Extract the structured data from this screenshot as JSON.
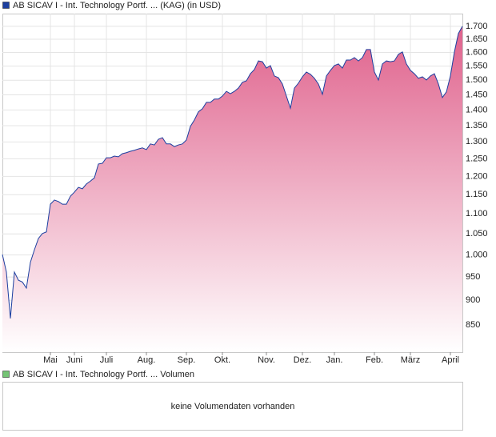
{
  "chart_data": [
    {
      "type": "area",
      "log_y": true,
      "grid": true,
      "area_color": "#e0648e",
      "categories": [
        null,
        null,
        null,
        null,
        null,
        null,
        null,
        null,
        null,
        null,
        null,
        null,
        "Mai",
        null,
        null,
        null,
        null,
        null,
        "Juni",
        null,
        null,
        null,
        null,
        null,
        null,
        null,
        "Juli",
        null,
        null,
        null,
        null,
        null,
        null,
        null,
        null,
        null,
        "Aug.",
        null,
        null,
        null,
        null,
        null,
        null,
        null,
        null,
        null,
        "Sep.",
        null,
        null,
        null,
        null,
        null,
        null,
        null,
        null,
        "Okt.",
        null,
        null,
        null,
        null,
        null,
        null,
        null,
        null,
        null,
        null,
        "Nov.",
        null,
        null,
        null,
        null,
        null,
        null,
        null,
        null,
        "Dez.",
        null,
        null,
        null,
        null,
        null,
        null,
        null,
        "Jan.",
        null,
        null,
        null,
        null,
        null,
        null,
        null,
        null,
        null,
        "Feb.",
        null,
        null,
        null,
        null,
        null,
        null,
        null,
        null,
        "März",
        null,
        null,
        null,
        null,
        null,
        null,
        null,
        null,
        null,
        "April",
        null,
        null,
        null
      ],
      "series": [
        {
          "name": "AB SICAV I - Int. Technology Portf. ... (KAG) (in USD)",
          "color": "#1c3fa0",
          "values": [
            1001,
            961,
            863,
            961,
            943,
            939,
            926,
            983,
            1012,
            1039,
            1051,
            1055,
            1125,
            1136,
            1132,
            1125,
            1125,
            1146,
            1157,
            1170,
            1166,
            1179,
            1187,
            1196,
            1235,
            1237,
            1253,
            1253,
            1258,
            1256,
            1265,
            1268,
            1272,
            1275,
            1279,
            1282,
            1277,
            1294,
            1291,
            1308,
            1313,
            1294,
            1294,
            1286,
            1291,
            1294,
            1306,
            1348,
            1368,
            1394,
            1404,
            1425,
            1425,
            1436,
            1436,
            1446,
            1462,
            1454,
            1462,
            1473,
            1493,
            1498,
            1523,
            1538,
            1569,
            1566,
            1543,
            1552,
            1515,
            1509,
            1487,
            1446,
            1406,
            1473,
            1490,
            1512,
            1529,
            1521,
            1507,
            1487,
            1452,
            1515,
            1535,
            1552,
            1558,
            1543,
            1572,
            1572,
            1581,
            1569,
            1581,
            1611,
            1611,
            1529,
            1501,
            1558,
            1569,
            1566,
            1569,
            1593,
            1602,
            1558,
            1535,
            1523,
            1507,
            1512,
            1501,
            1515,
            1523,
            1487,
            1441,
            1460,
            1515,
            1602,
            1672,
            1700
          ]
        }
      ],
      "ylim": [
        798,
        1751
      ],
      "yticks": [
        850,
        900,
        950,
        {
          "value": 1000,
          "label": "1.000"
        },
        {
          "value": 1050,
          "label": "1.050"
        },
        {
          "value": 1100,
          "label": "1.100"
        },
        {
          "value": 1150,
          "label": "1.150"
        },
        {
          "value": 1200,
          "label": "1.200"
        },
        {
          "value": 1250,
          "label": "1.250"
        },
        {
          "value": 1300,
          "label": "1.300"
        },
        {
          "value": 1350,
          "label": "1.350"
        },
        {
          "value": 1400,
          "label": "1.400"
        },
        {
          "value": 1450,
          "label": "1.450"
        },
        {
          "value": 1500,
          "label": "1.500"
        },
        {
          "value": 1550,
          "label": "1.550"
        },
        {
          "value": 1600,
          "label": "1.600"
        },
        {
          "value": 1650,
          "label": "1.650"
        },
        {
          "value": 1700,
          "label": "1.700"
        }
      ]
    },
    {
      "type": "bar",
      "series": [
        {
          "name": "AB SICAV I - Int. Technology Portf. ... Volumen",
          "color": "#74c474",
          "values": []
        }
      ],
      "annotation": "keine Volumendaten vorhanden"
    }
  ]
}
